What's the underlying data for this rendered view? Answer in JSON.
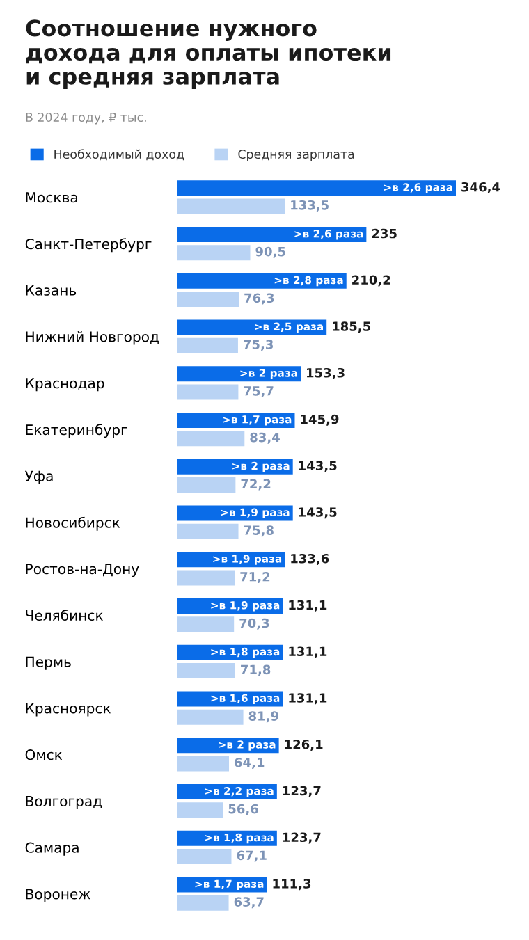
{
  "chart_data": {
    "type": "bar",
    "orientation": "horizontal",
    "title": "Соотношение нужного\nдохода для оплаты ипотеки\nи средняя зарплата",
    "subtitle": "В 2024 году, ₽ тыс.",
    "categories": [
      "Москва",
      "Санкт-Петербург",
      "Казань",
      "Нижний Новгород",
      "Краснодар",
      "Екатеринбург",
      "Уфа",
      "Новосибирск",
      "Ростов-на-Дону",
      "Челябинск",
      "Пермь",
      "Красноярск",
      "Омск",
      "Волгоград",
      "Самара",
      "Воронеж"
    ],
    "series": [
      {
        "name": "Необходимый доход",
        "color": "#0a6ce8",
        "values": [
          346.4,
          235,
          210.2,
          185.5,
          153.3,
          145.9,
          143.5,
          143.5,
          133.6,
          131.1,
          131.1,
          131.1,
          126.1,
          123.7,
          123.7,
          111.3
        ],
        "value_labels": [
          "346,4",
          "235",
          "210,2",
          "185,5",
          "153,3",
          "145,9",
          "143,5",
          "143,5",
          "133,6",
          "131,1",
          "131,1",
          "131,1",
          "126,1",
          "123,7",
          "123,7",
          "111,3"
        ]
      },
      {
        "name": "Средняя зарплата",
        "color": "#b9d3f4",
        "values": [
          133.5,
          90.5,
          76.3,
          75.3,
          75.7,
          83.4,
          72.2,
          75.8,
          71.2,
          70.3,
          71.8,
          81.9,
          64.1,
          56.6,
          67.1,
          63.7
        ],
        "value_labels": [
          "133,5",
          "90,5",
          "76,3",
          "75,3",
          "75,7",
          "83,4",
          "72,2",
          "75,8",
          "71,2",
          "70,3",
          "71,8",
          "81,9",
          "64,1",
          "56,6",
          "67,1",
          "63,7"
        ]
      }
    ],
    "annotations": [
      {
        "text": ">в 2,6 раза",
        "x": 346.4,
        "y": "Москва"
      },
      {
        "text": ">в 2,6 раза",
        "x": 235,
        "y": "Санкт-Петербург"
      },
      {
        "text": ">в 2,8 раза",
        "x": 210.2,
        "y": "Казань"
      },
      {
        "text": ">в 2,5 раза",
        "x": 185.5,
        "y": "Нижний Новгород"
      },
      {
        "text": ">в 2 раза",
        "x": 153.3,
        "y": "Краснодар"
      },
      {
        "text": ">в 1,7 раза",
        "x": 145.9,
        "y": "Екатеринбург"
      },
      {
        "text": ">в 2 раза",
        "x": 143.5,
        "y": "Уфа"
      },
      {
        "text": ">в 1,9 раза",
        "x": 143.5,
        "y": "Новосибирск"
      },
      {
        "text": ">в 1,9 раза",
        "x": 133.6,
        "y": "Ростов-на-Дону"
      },
      {
        "text": ">в 1,9 раза",
        "x": 131.1,
        "y": "Челябинск"
      },
      {
        "text": ">в 1,8 раза",
        "x": 131.1,
        "y": "Пермь"
      },
      {
        "text": ">в 1,6 раза",
        "x": 131.1,
        "y": "Красноярск"
      },
      {
        "text": ">в 2 раза",
        "x": 126.1,
        "y": "Омск"
      },
      {
        "text": ">в 2,2 раза",
        "x": 123.7,
        "y": "Волгоград"
      },
      {
        "text": ">в 1,8 раза",
        "x": 123.7,
        "y": "Самара"
      },
      {
        "text": ">в 1,7 раза",
        "x": 111.3,
        "y": "Воронеж"
      }
    ],
    "legend": "top left",
    "grid": false
  }
}
